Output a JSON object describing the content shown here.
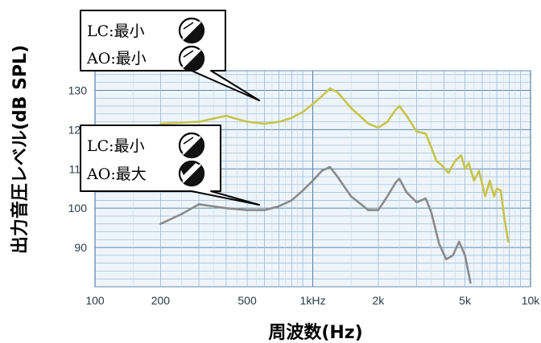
{
  "chart_data": {
    "type": "line",
    "title": "",
    "xlabel": "周波数(Hz)",
    "ylabel": "出力音圧レベル(dB SPL)",
    "x_scale": "log",
    "xlim": [
      100,
      10000
    ],
    "ylim": [
      80,
      135
    ],
    "x_ticks": [
      {
        "value": 100,
        "label": "100"
      },
      {
        "value": 200,
        "label": "200"
      },
      {
        "value": 500,
        "label": "500"
      },
      {
        "value": 1000,
        "label": "1kHz"
      },
      {
        "value": 2000,
        "label": "2k"
      },
      {
        "value": 5000,
        "label": "5k"
      },
      {
        "value": 10000,
        "label": "10k"
      }
    ],
    "y_ticks": [
      {
        "value": 90,
        "label": "90"
      },
      {
        "value": 100,
        "label": "100"
      },
      {
        "value": 110,
        "label": "110"
      },
      {
        "value": 120,
        "label": "120"
      },
      {
        "value": 130,
        "label": "130"
      }
    ],
    "series": [
      {
        "color": "#c8c44a",
        "points": [
          [
            200,
            121.5
          ],
          [
            300,
            122
          ],
          [
            400,
            123.5
          ],
          [
            500,
            122
          ],
          [
            600,
            121.5
          ],
          [
            700,
            122
          ],
          [
            800,
            123
          ],
          [
            900,
            124.5
          ],
          [
            1000,
            126.5
          ],
          [
            1100,
            128.5
          ],
          [
            1200,
            130.5
          ],
          [
            1300,
            129.5
          ],
          [
            1500,
            125.5
          ],
          [
            1800,
            121.5
          ],
          [
            2000,
            120.5
          ],
          [
            2200,
            122
          ],
          [
            2400,
            125
          ],
          [
            2500,
            126
          ],
          [
            2700,
            123.5
          ],
          [
            3000,
            119.5
          ],
          [
            3300,
            119
          ],
          [
            3500,
            115.5
          ],
          [
            3700,
            112
          ],
          [
            3900,
            111
          ],
          [
            4200,
            109
          ],
          [
            4500,
            112
          ],
          [
            4800,
            113.5
          ],
          [
            5000,
            110
          ],
          [
            5200,
            111.5
          ],
          [
            5500,
            107
          ],
          [
            5800,
            109.5
          ],
          [
            6200,
            103
          ],
          [
            6500,
            107
          ],
          [
            6800,
            103
          ],
          [
            7000,
            105
          ],
          [
            7300,
            104.5
          ],
          [
            7600,
            97
          ],
          [
            7900,
            91.5
          ]
        ]
      },
      {
        "color": "#8a8a8a",
        "points": [
          [
            200,
            96
          ],
          [
            250,
            98.5
          ],
          [
            300,
            101
          ],
          [
            400,
            100
          ],
          [
            500,
            99.5
          ],
          [
            600,
            99.5
          ],
          [
            700,
            100.5
          ],
          [
            800,
            102
          ],
          [
            900,
            104.5
          ],
          [
            1000,
            107
          ],
          [
            1100,
            109.5
          ],
          [
            1200,
            110.5
          ],
          [
            1300,
            108
          ],
          [
            1500,
            103
          ],
          [
            1800,
            99.5
          ],
          [
            2000,
            99.5
          ],
          [
            2200,
            103
          ],
          [
            2400,
            106.5
          ],
          [
            2500,
            107.5
          ],
          [
            2700,
            104
          ],
          [
            3000,
            101.5
          ],
          [
            3300,
            102.5
          ],
          [
            3500,
            99
          ],
          [
            3800,
            91
          ],
          [
            4100,
            87
          ],
          [
            4400,
            88
          ],
          [
            4700,
            91.5
          ],
          [
            5000,
            88
          ],
          [
            5300,
            81
          ]
        ]
      }
    ]
  },
  "callouts": [
    {
      "lines": [
        {
          "label": "LC",
          "sep": ":",
          "value": "最小",
          "icon": "knob-min-icon"
        },
        {
          "label": "AO",
          "sep": ":",
          "value": "最小",
          "icon": "knob-min-icon"
        }
      ]
    },
    {
      "lines": [
        {
          "label": "LC",
          "sep": ":",
          "value": "最小",
          "icon": "knob-min-icon"
        },
        {
          "label": "AO",
          "sep": ":",
          "value": "最大",
          "icon": "knob-max-icon"
        }
      ]
    }
  ]
}
